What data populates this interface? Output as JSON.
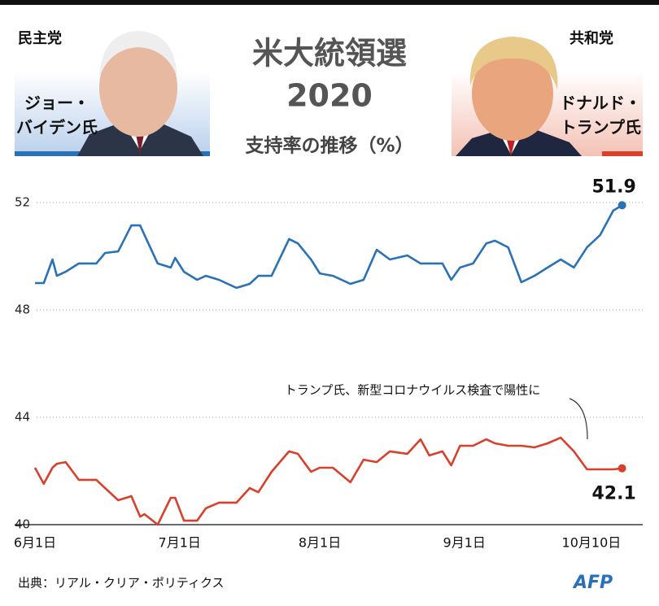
{
  "chart_data": {
    "type": "line",
    "title": "米大統領選",
    "subtitle": "2020",
    "y_label": "支持率の推移（%）",
    "annotation": "トランプ氏、新型コロナウイルス検査で陽性に",
    "source": "出典：リアル・クリア・ポリティクス",
    "logo": "AFP",
    "x": [
      0,
      2,
      4,
      5,
      7,
      10,
      14,
      16,
      19,
      22,
      24,
      25,
      28,
      31,
      32,
      34,
      37,
      39,
      42,
      46,
      49,
      51,
      54,
      58,
      60,
      63,
      65,
      68,
      72,
      75,
      78,
      81,
      85,
      88,
      90,
      93,
      95,
      97,
      100,
      103,
      105,
      108,
      111,
      114,
      117,
      120,
      123,
      126,
      129,
      132,
      134
    ],
    "xlim": [
      0,
      135
    ],
    "xticks": [
      {
        "value": 0,
        "label": "6月1日"
      },
      {
        "value": 33,
        "label": "7月1日"
      },
      {
        "value": 65,
        "label": "8月1日"
      },
      {
        "value": 98,
        "label": "9月1日"
      },
      {
        "value": 127,
        "label": "10月10日"
      }
    ],
    "ylim": [
      40,
      52
    ],
    "yticks": [
      40,
      44,
      48,
      52
    ],
    "grid": true,
    "series": [
      {
        "party": "民主党",
        "name_lines": [
          "ジョー・",
          "バイデン氏"
        ],
        "color": "#2a72b5",
        "values": [
          49.0,
          49.0,
          49.88,
          49.27,
          49.42,
          49.73,
          49.73,
          50.12,
          50.18,
          51.15,
          51.15,
          50.79,
          49.73,
          49.58,
          49.94,
          49.42,
          49.12,
          49.27,
          49.12,
          48.82,
          48.97,
          49.27,
          49.27,
          50.64,
          50.48,
          49.88,
          49.36,
          49.27,
          48.97,
          49.12,
          50.24,
          49.88,
          50.03,
          49.73,
          49.73,
          49.73,
          49.12,
          49.58,
          49.73,
          50.48,
          50.58,
          50.33,
          49.03,
          49.27,
          49.58,
          49.88,
          49.58,
          50.33,
          50.79,
          51.7,
          51.9
        ]
      },
      {
        "party": "共和党",
        "name_lines": [
          "ドナルド・",
          "トランプ氏"
        ],
        "color": "#d9402b",
        "values": [
          42.12,
          41.52,
          42.12,
          42.27,
          42.33,
          41.67,
          41.67,
          41.36,
          40.91,
          41.06,
          40.3,
          40.39,
          40.0,
          41.0,
          41.0,
          40.15,
          40.15,
          40.61,
          40.82,
          40.82,
          41.36,
          41.21,
          41.97,
          42.73,
          42.64,
          41.97,
          42.12,
          42.12,
          41.58,
          42.42,
          42.33,
          42.73,
          42.64,
          43.18,
          42.58,
          42.73,
          42.21,
          42.94,
          42.94,
          43.18,
          43.03,
          42.94,
          42.94,
          42.88,
          43.03,
          43.24,
          42.73,
          42.06,
          42.06,
          42.06,
          42.1
        ]
      }
    ]
  }
}
